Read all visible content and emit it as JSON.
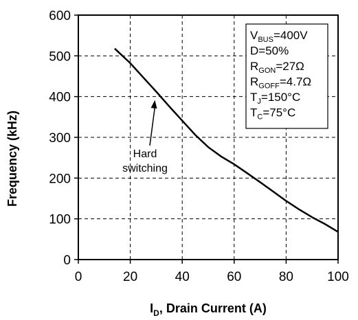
{
  "chart_data": {
    "type": "line",
    "xlabel": {
      "main": "I",
      "sub": "D",
      "rest": ", Drain Current (A)"
    },
    "ylabel": "Frequency (kHz)",
    "xlim": [
      0,
      100
    ],
    "ylim": [
      0,
      600
    ],
    "x_ticks": [
      "0",
      "20",
      "40",
      "60",
      "80",
      "100"
    ],
    "y_ticks": [
      "0",
      "100",
      "200",
      "300",
      "400",
      "500",
      "600"
    ],
    "grid": "dashed",
    "series": [
      {
        "x": [
          14,
          20,
          25,
          30,
          35,
          40,
          45,
          50,
          55,
          60,
          65,
          70,
          75,
          80,
          85,
          90,
          95,
          100
        ],
        "y": [
          518,
          482,
          447,
          412,
          376,
          341,
          306,
          276,
          253,
          234,
          212,
          190,
          167,
          144,
          123,
          104,
          87,
          68
        ]
      }
    ],
    "annotation": {
      "lines": [
        "Hard",
        "switching"
      ],
      "points_to": {
        "x": 30,
        "y": 405
      }
    },
    "conditions": [
      {
        "main": "V",
        "sub": "BUS",
        "rest": "=400V"
      },
      {
        "main": "D=50%",
        "sub": "",
        "rest": ""
      },
      {
        "main": "R",
        "sub": "GON",
        "rest": "=27Ω"
      },
      {
        "main": "R",
        "sub": "GOFF",
        "rest": "=4.7Ω"
      },
      {
        "main": "T",
        "sub": "J",
        "rest": "=150°C"
      },
      {
        "main": "T",
        "sub": "C",
        "rest": "=75°C"
      }
    ]
  }
}
